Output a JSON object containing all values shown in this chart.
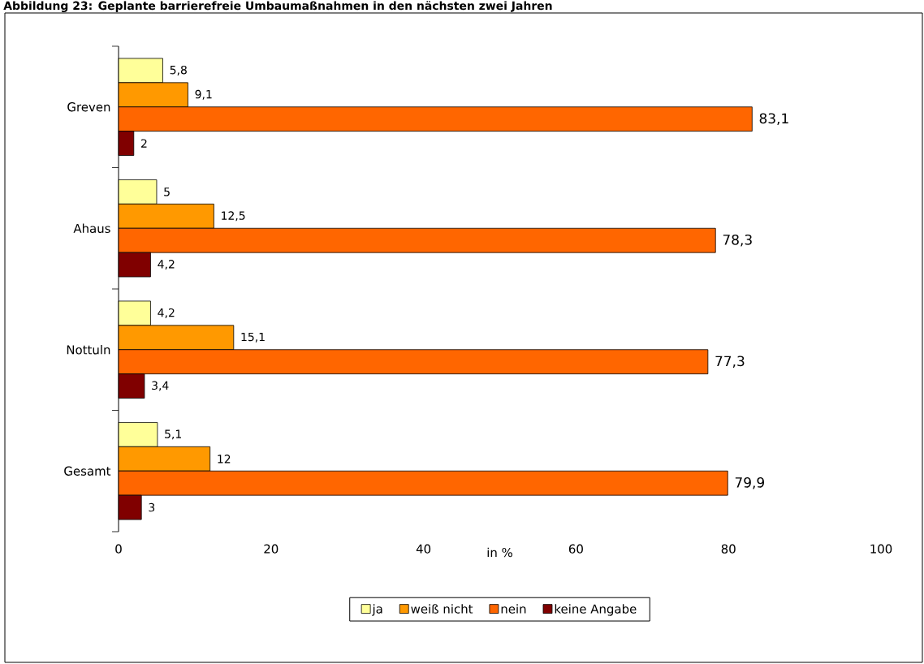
{
  "chart_data": {
    "type": "bar",
    "orientation": "horizontal",
    "title": "Abbildung 23: Geplante barrierefreie Umbaumaßnahmen in den nächsten zwei Jahren",
    "xlabel": "in %",
    "categories": [
      "Greven",
      "Ahaus",
      "Nottuln",
      "Gesamt"
    ],
    "series": [
      {
        "name": "ja",
        "color": "#ffff99",
        "values": [
          5.8,
          5,
          4.2,
          5.1
        ],
        "value_labels": [
          "5,8",
          "5",
          "4,2",
          "5,1"
        ]
      },
      {
        "name": "weiß nicht",
        "color": "#ff9900",
        "values": [
          9.1,
          12.5,
          15.1,
          12
        ],
        "value_labels": [
          "9,1",
          "12,5",
          "15,1",
          "12"
        ]
      },
      {
        "name": "nein",
        "color": "#ff6600",
        "values": [
          83.1,
          78.3,
          77.3,
          79.9
        ],
        "value_labels": [
          "83,1",
          "78,3",
          "77,3",
          "79,9"
        ]
      },
      {
        "name": "keine Angabe",
        "color": "#800000",
        "values": [
          2,
          4.2,
          3.4,
          3
        ],
        "value_labels": [
          "2",
          "4,2",
          "3,4",
          "3"
        ]
      }
    ],
    "xlim": [
      0,
      100
    ],
    "xticks": [
      0,
      20,
      40,
      60,
      80,
      100
    ],
    "grid": false,
    "legend": "bottom"
  }
}
